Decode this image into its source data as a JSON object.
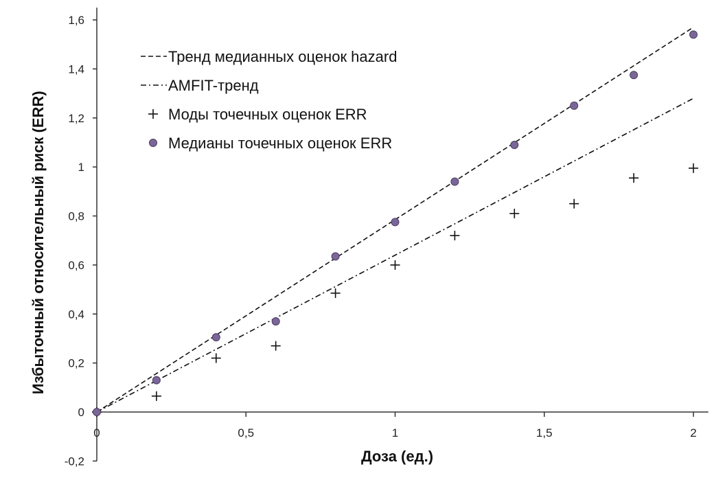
{
  "chart_data": {
    "type": "scatter",
    "xlabel": "Доза (ед.)",
    "ylabel": "Избыточный относительный риск (ERR)",
    "xlim": [
      0,
      2.05
    ],
    "ylim": [
      -0.2,
      1.65
    ],
    "x_ticks": [
      0,
      0.5,
      1,
      1.5,
      2
    ],
    "x_tick_labels": [
      "0",
      "0,5",
      "1",
      "1,5",
      "2"
    ],
    "y_ticks": [
      -0.2,
      0,
      0.2,
      0.4,
      0.6,
      0.8,
      1,
      1.2,
      1.4,
      1.6
    ],
    "y_tick_labels": [
      "-0,2",
      "0",
      "0,2",
      "0,4",
      "0,6",
      "0,8",
      "1",
      "1,2",
      "1,4",
      "1,6"
    ],
    "grid": false,
    "legend_position": "top-left",
    "series": [
      {
        "name": "Тренд медианных оценок hazard",
        "kind": "line",
        "style": "dashed",
        "color": "#111111",
        "x": [
          0,
          2
        ],
        "y": [
          0,
          1.57
        ]
      },
      {
        "name": "AMFIT-тренд",
        "kind": "line",
        "style": "dash-dot",
        "color": "#111111",
        "x": [
          0,
          2
        ],
        "y": [
          0,
          1.28
        ]
      },
      {
        "name": "Моды точечных оценок ERR",
        "kind": "scatter",
        "marker": "plus",
        "color": "#111111",
        "x": [
          0,
          0.2,
          0.4,
          0.6,
          0.8,
          1.0,
          1.2,
          1.4,
          1.6,
          1.8,
          2.0
        ],
        "y": [
          0,
          0.065,
          0.22,
          0.27,
          0.485,
          0.6,
          0.72,
          0.81,
          0.85,
          0.955,
          0.995
        ]
      },
      {
        "name": "Медианы точечных оценок ERR",
        "kind": "scatter",
        "marker": "circle",
        "color": "#7b6699",
        "x": [
          0,
          0.2,
          0.4,
          0.6,
          0.8,
          1.0,
          1.2,
          1.4,
          1.6,
          1.8,
          2.0
        ],
        "y": [
          0,
          0.13,
          0.305,
          0.37,
          0.635,
          0.775,
          0.94,
          1.09,
          1.25,
          1.375,
          1.54
        ]
      }
    ]
  }
}
